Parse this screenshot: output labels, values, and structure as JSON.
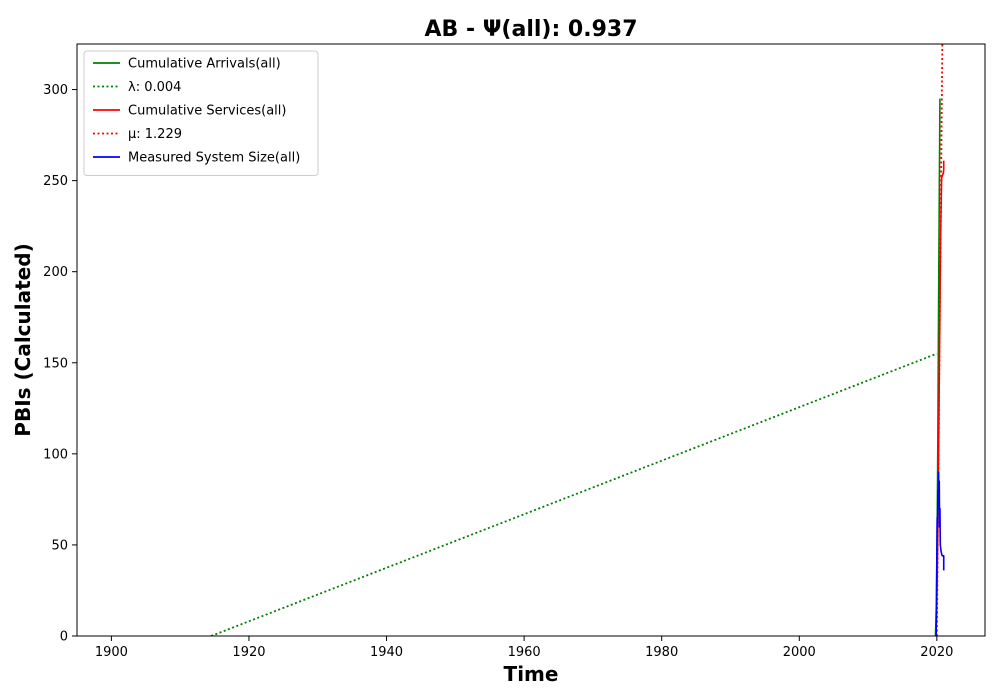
{
  "chart_data": {
    "type": "line",
    "title": "AB -  Ψ(all): 0.937",
    "xlabel": "Time",
    "ylabel": "PBIs (Calculated)",
    "xlim": [
      1895,
      2027
    ],
    "ylim": [
      0,
      325
    ],
    "x_ticks": [
      1900,
      1920,
      1940,
      1960,
      1980,
      2000,
      2020
    ],
    "y_ticks": [
      0,
      50,
      100,
      150,
      200,
      250,
      300
    ],
    "grid": false,
    "legend_position": "top-left",
    "series": [
      {
        "name": "Cumulative Arrivals(all)",
        "color": "#008000",
        "style": "solid",
        "x": [
          2019.8,
          2019.95,
          2020.05,
          2020.15,
          2020.25,
          2020.35,
          2020.45
        ],
        "y": [
          0,
          20,
          60,
          110,
          180,
          240,
          295
        ]
      },
      {
        "name": "λ: 0.004",
        "color": "#008000",
        "style": "dotted",
        "x": [
          1914.5,
          2020.0
        ],
        "y": [
          0,
          155
        ]
      },
      {
        "name": "Cumulative Services(all)",
        "color": "#ff0000",
        "style": "solid",
        "x": [
          2019.85,
          2019.95,
          2020.05,
          2020.15,
          2020.25,
          2020.35,
          2020.45,
          2020.55,
          2020.7,
          2020.75,
          2020.8,
          2020.85,
          2020.9,
          2020.95,
          2021.0,
          2021.0
        ],
        "y": [
          0,
          10,
          30,
          60,
          100,
          140,
          180,
          220,
          252,
          252,
          253,
          253,
          254,
          254,
          256,
          261
        ]
      },
      {
        "name": "μ: 1.229",
        "color": "#ff0000",
        "style": "dotted",
        "x": [
          2020.0,
          2020.8
        ],
        "y": [
          0,
          325
        ]
      },
      {
        "name": "Measured System Size(all)",
        "color": "#0000ff",
        "style": "solid",
        "x": [
          2019.9,
          2019.95,
          2020.0,
          2020.05,
          2020.1,
          2020.15,
          2020.2,
          2020.25,
          2020.3,
          2020.35,
          2020.4,
          2020.45,
          2020.5,
          2020.6,
          2020.7,
          2020.8,
          2020.9,
          2021.0,
          2021.0
        ],
        "y": [
          0,
          20,
          45,
          65,
          60,
          80,
          70,
          90,
          75,
          85,
          60,
          70,
          50,
          47,
          45,
          44,
          44,
          44,
          36
        ]
      }
    ]
  }
}
